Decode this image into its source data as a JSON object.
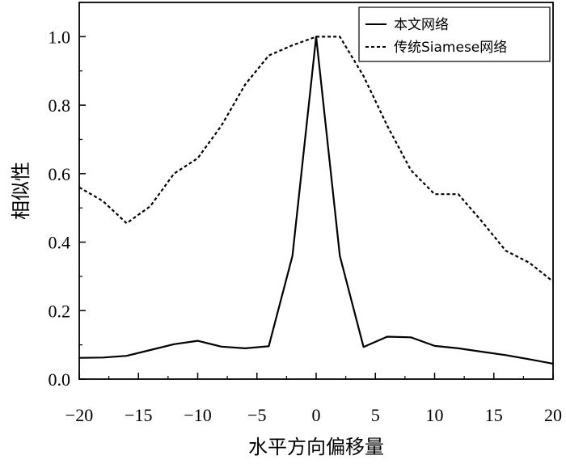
{
  "chart_data": {
    "type": "line",
    "title": "",
    "xlabel": "水平方向偏移量",
    "ylabel": "相似性",
    "xlim": [
      -20,
      20
    ],
    "ylim": [
      0,
      1.1
    ],
    "xticks": [
      -20,
      -15,
      -10,
      -5,
      0,
      5,
      10,
      15,
      20
    ],
    "xtick_labels": [
      "−20",
      "−15",
      "−10",
      "−5",
      "0",
      "5",
      "10",
      "15",
      "20"
    ],
    "yticks": [
      0.0,
      0.2,
      0.4,
      0.6,
      0.8,
      1.0
    ],
    "ytick_labels": [
      "0.0",
      "0.2",
      "0.4",
      "0.6",
      "0.8",
      "1.0"
    ],
    "grid": false,
    "legend_position": "top-right",
    "series": [
      {
        "name": "本文网络",
        "style": "solid",
        "color": "#000000",
        "x": [
          -20,
          -18,
          -16,
          -14,
          -12,
          -10,
          -8,
          -6,
          -4,
          -2,
          0,
          2,
          4,
          6,
          8,
          10,
          12,
          14,
          16,
          18,
          20
        ],
        "y": [
          0.062,
          0.063,
          0.068,
          0.085,
          0.102,
          0.112,
          0.095,
          0.09,
          0.096,
          0.36,
          1.0,
          0.36,
          0.094,
          0.124,
          0.122,
          0.097,
          0.09,
          0.08,
          0.07,
          0.058,
          0.045
        ]
      },
      {
        "name": "传统Siamese网络",
        "style": "dashed",
        "color": "#000000",
        "x": [
          -20,
          -18,
          -16,
          -14,
          -12,
          -10,
          -8,
          -6,
          -4,
          -2,
          0,
          2,
          4,
          6,
          8,
          10,
          12,
          14,
          16,
          18,
          20
        ],
        "y": [
          0.56,
          0.52,
          0.455,
          0.505,
          0.6,
          0.645,
          0.74,
          0.86,
          0.945,
          0.975,
          1.0,
          1.0,
          0.885,
          0.74,
          0.61,
          0.54,
          0.54,
          0.46,
          0.375,
          0.34,
          0.285
        ]
      }
    ]
  }
}
